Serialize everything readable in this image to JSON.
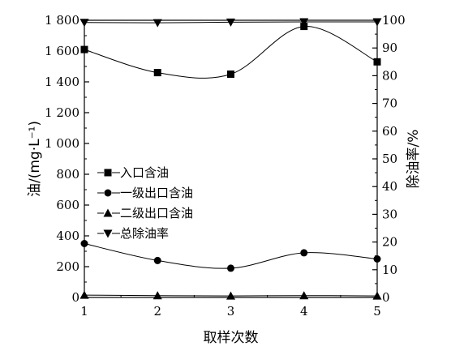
{
  "chart_data": {
    "type": "line",
    "x": [
      1,
      2,
      3,
      4,
      5
    ],
    "xlabel": "取样次数",
    "ylabel_left": "油/(mg·L⁻¹)",
    "ylabel_right": "除油率/%",
    "ylim_left": [
      0,
      1800
    ],
    "ylim_right": [
      0,
      100
    ],
    "xlim": [
      1,
      5
    ],
    "left_ticks": [
      0,
      200,
      400,
      600,
      800,
      1000,
      1200,
      1400,
      1600,
      1800
    ],
    "left_tick_labels": [
      "0",
      "200",
      "400",
      "600",
      "800",
      "1 000",
      "1 200",
      "1 400",
      "1 600",
      "1 800"
    ],
    "right_ticks": [
      0,
      10,
      20,
      30,
      40,
      50,
      60,
      70,
      80,
      90,
      100
    ],
    "right_tick_labels": [
      "0",
      "10",
      "20",
      "30",
      "40",
      "50",
      "60",
      "70",
      "80",
      "90",
      "100"
    ],
    "x_tick_labels": [
      "1",
      "2",
      "3",
      "4",
      "5"
    ],
    "legend_position": "left-middle",
    "grid": false,
    "series": [
      {
        "name": "入口含油",
        "marker": "square",
        "axis": "left",
        "values": [
          1610,
          1460,
          1450,
          1760,
          1530
        ]
      },
      {
        "name": "一级出口含油",
        "marker": "circle",
        "axis": "left",
        "values": [
          350,
          240,
          190,
          290,
          250
        ]
      },
      {
        "name": "二级出口含油",
        "marker": "triangle-up",
        "axis": "left",
        "values": [
          15,
          12,
          10,
          12,
          10
        ]
      },
      {
        "name": "总除油率",
        "marker": "triangle-down",
        "axis": "right",
        "values": [
          99.2,
          99.1,
          99.3,
          99.4,
          99.4
        ]
      }
    ]
  }
}
